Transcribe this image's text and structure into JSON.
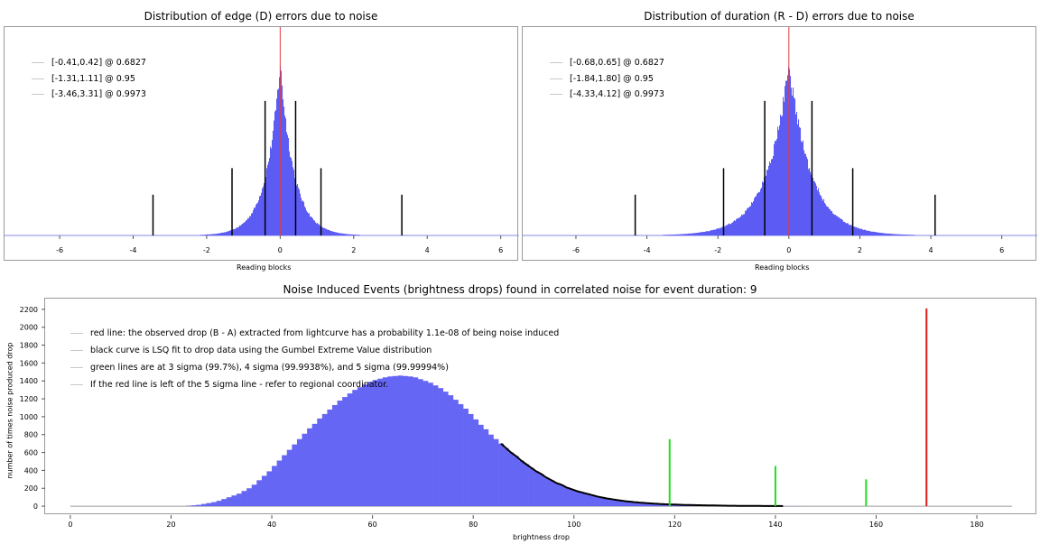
{
  "chart_data": [
    {
      "type": "bar",
      "title": "Distribution of edge (D) errors due to noise",
      "xlabel": "Reading blocks",
      "xlim": [
        -7.5,
        6.5
      ],
      "xticks": [
        "-6",
        "-4",
        "-2",
        "0",
        "2",
        "4",
        "6"
      ],
      "distribution": {
        "shape": "laplace-like",
        "center": 0,
        "scale": 0.38,
        "peak_fraction": 0.84
      },
      "observed_marker_x": 0,
      "legend": [
        "[-0.41,0.42] @ 0.6827",
        "[-1.31,1.11] @ 0.95",
        "[-3.46,3.31] @ 0.9973"
      ],
      "interval_lines": [
        {
          "x": -0.41,
          "height": 0.66
        },
        {
          "x": 0.42,
          "height": 0.66
        },
        {
          "x": -1.31,
          "height": 0.33
        },
        {
          "x": 1.11,
          "height": 0.33
        },
        {
          "x": -3.46,
          "height": 0.2
        },
        {
          "x": 3.31,
          "height": 0.2
        }
      ],
      "colors": {
        "bars": "#5c5cf5",
        "marker": "#e03c3c",
        "interval": "#000000"
      }
    },
    {
      "type": "bar",
      "title": "Distribution of duration (R - D) errors due to noise",
      "xlabel": "Reading blocks",
      "xlim": [
        -7.5,
        7
      ],
      "xticks": [
        "-6",
        "-4",
        "-2",
        "0",
        "2",
        "4",
        "6"
      ],
      "distribution": {
        "shape": "laplace-like",
        "center": 0,
        "scale": 0.62,
        "peak_fraction": 0.84
      },
      "observed_marker_x": 0,
      "legend": [
        "[-0.68,0.65] @ 0.6827",
        "[-1.84,1.80] @ 0.95",
        "[-4.33,4.12] @ 0.9973"
      ],
      "interval_lines": [
        {
          "x": -0.68,
          "height": 0.66
        },
        {
          "x": 0.65,
          "height": 0.66
        },
        {
          "x": -1.84,
          "height": 0.33
        },
        {
          "x": 1.8,
          "height": 0.33
        },
        {
          "x": -4.33,
          "height": 0.2
        },
        {
          "x": 4.12,
          "height": 0.2
        }
      ],
      "colors": {
        "bars": "#5c5cf5",
        "marker": "#e03c3c",
        "interval": "#000000"
      }
    },
    {
      "type": "bar",
      "title": "Noise Induced Events (brightness drops) found in correlated noise for event duration: 9",
      "xlabel": "brightness drop",
      "ylabel": "number of times noise produced drop",
      "xlim": [
        -5,
        192
      ],
      "ylim": [
        -100,
        2320
      ],
      "xticks": [
        "0",
        "20",
        "40",
        "60",
        "80",
        "100",
        "120",
        "140",
        "160",
        "180"
      ],
      "yticks": [
        "0",
        "200",
        "400",
        "600",
        "800",
        "1000",
        "1200",
        "1400",
        "1600",
        "1800",
        "2000",
        "2200"
      ],
      "histogram": {
        "bin_width": 1,
        "range": [
          0,
          187
        ],
        "counts": [
          0,
          0,
          0,
          0,
          0,
          0,
          0,
          0,
          0,
          0,
          0,
          0,
          0,
          0,
          0,
          0,
          0,
          0,
          0,
          0,
          0,
          0,
          0,
          5,
          10,
          15,
          25,
          35,
          45,
          60,
          80,
          100,
          120,
          140,
          170,
          200,
          240,
          290,
          340,
          390,
          450,
          510,
          570,
          630,
          690,
          750,
          810,
          870,
          920,
          980,
          1030,
          1080,
          1130,
          1180,
          1220,
          1260,
          1300,
          1330,
          1360,
          1390,
          1410,
          1425,
          1440,
          1450,
          1455,
          1460,
          1455,
          1450,
          1440,
          1420,
          1400,
          1380,
          1350,
          1320,
          1280,
          1240,
          1190,
          1140,
          1090,
          1030,
          970,
          910,
          860,
          800,
          750,
          700,
          650,
          600,
          560,
          510,
          470,
          430,
          390,
          360,
          320,
          290,
          260,
          240,
          210,
          190,
          170,
          155,
          140,
          125,
          110,
          98,
          87,
          78,
          69,
          61,
          54,
          48,
          43,
          38,
          34,
          30,
          27,
          24,
          21,
          19,
          17,
          15,
          13,
          12,
          11,
          10,
          9,
          8,
          7,
          6,
          5,
          5,
          4,
          4,
          3,
          3,
          3,
          2,
          2,
          2,
          2,
          1,
          1,
          1,
          1,
          1,
          0,
          0,
          0,
          0,
          0,
          0,
          0,
          0,
          0,
          0,
          0,
          0,
          0,
          0,
          0,
          0,
          0,
          0,
          0,
          0,
          0,
          0,
          0,
          0,
          0,
          0,
          0,
          0,
          0,
          0,
          0,
          0
        ]
      },
      "fit_curve": {
        "x_start": 85,
        "x_end": 141,
        "label": "Gumbel Extreme Value fit"
      },
      "sigma_lines": [
        {
          "x": 119,
          "height": 750,
          "color": "#22dd22"
        },
        {
          "x": 140,
          "height": 450,
          "color": "#22dd22"
        },
        {
          "x": 158,
          "height": 300,
          "color": "#22dd22"
        }
      ],
      "observed_drop": {
        "x": 170,
        "height": 2210,
        "color": "#dd1a1a"
      },
      "legend": [
        "red line: the observed drop (B - A) extracted from lightcurve has a probability 1.1e-08 of being noise induced",
        "black curve is LSQ fit to drop data using the Gumbel Extreme Value distribution",
        "green lines are at 3 sigma (99.7%), 4 sigma (99.9938%), and 5 sigma (99.99994%)",
        "If the red line is left of the 5 sigma line - refer to regional coordinator."
      ],
      "colors": {
        "bars": "#6666f5",
        "fit": "#000000"
      }
    }
  ]
}
